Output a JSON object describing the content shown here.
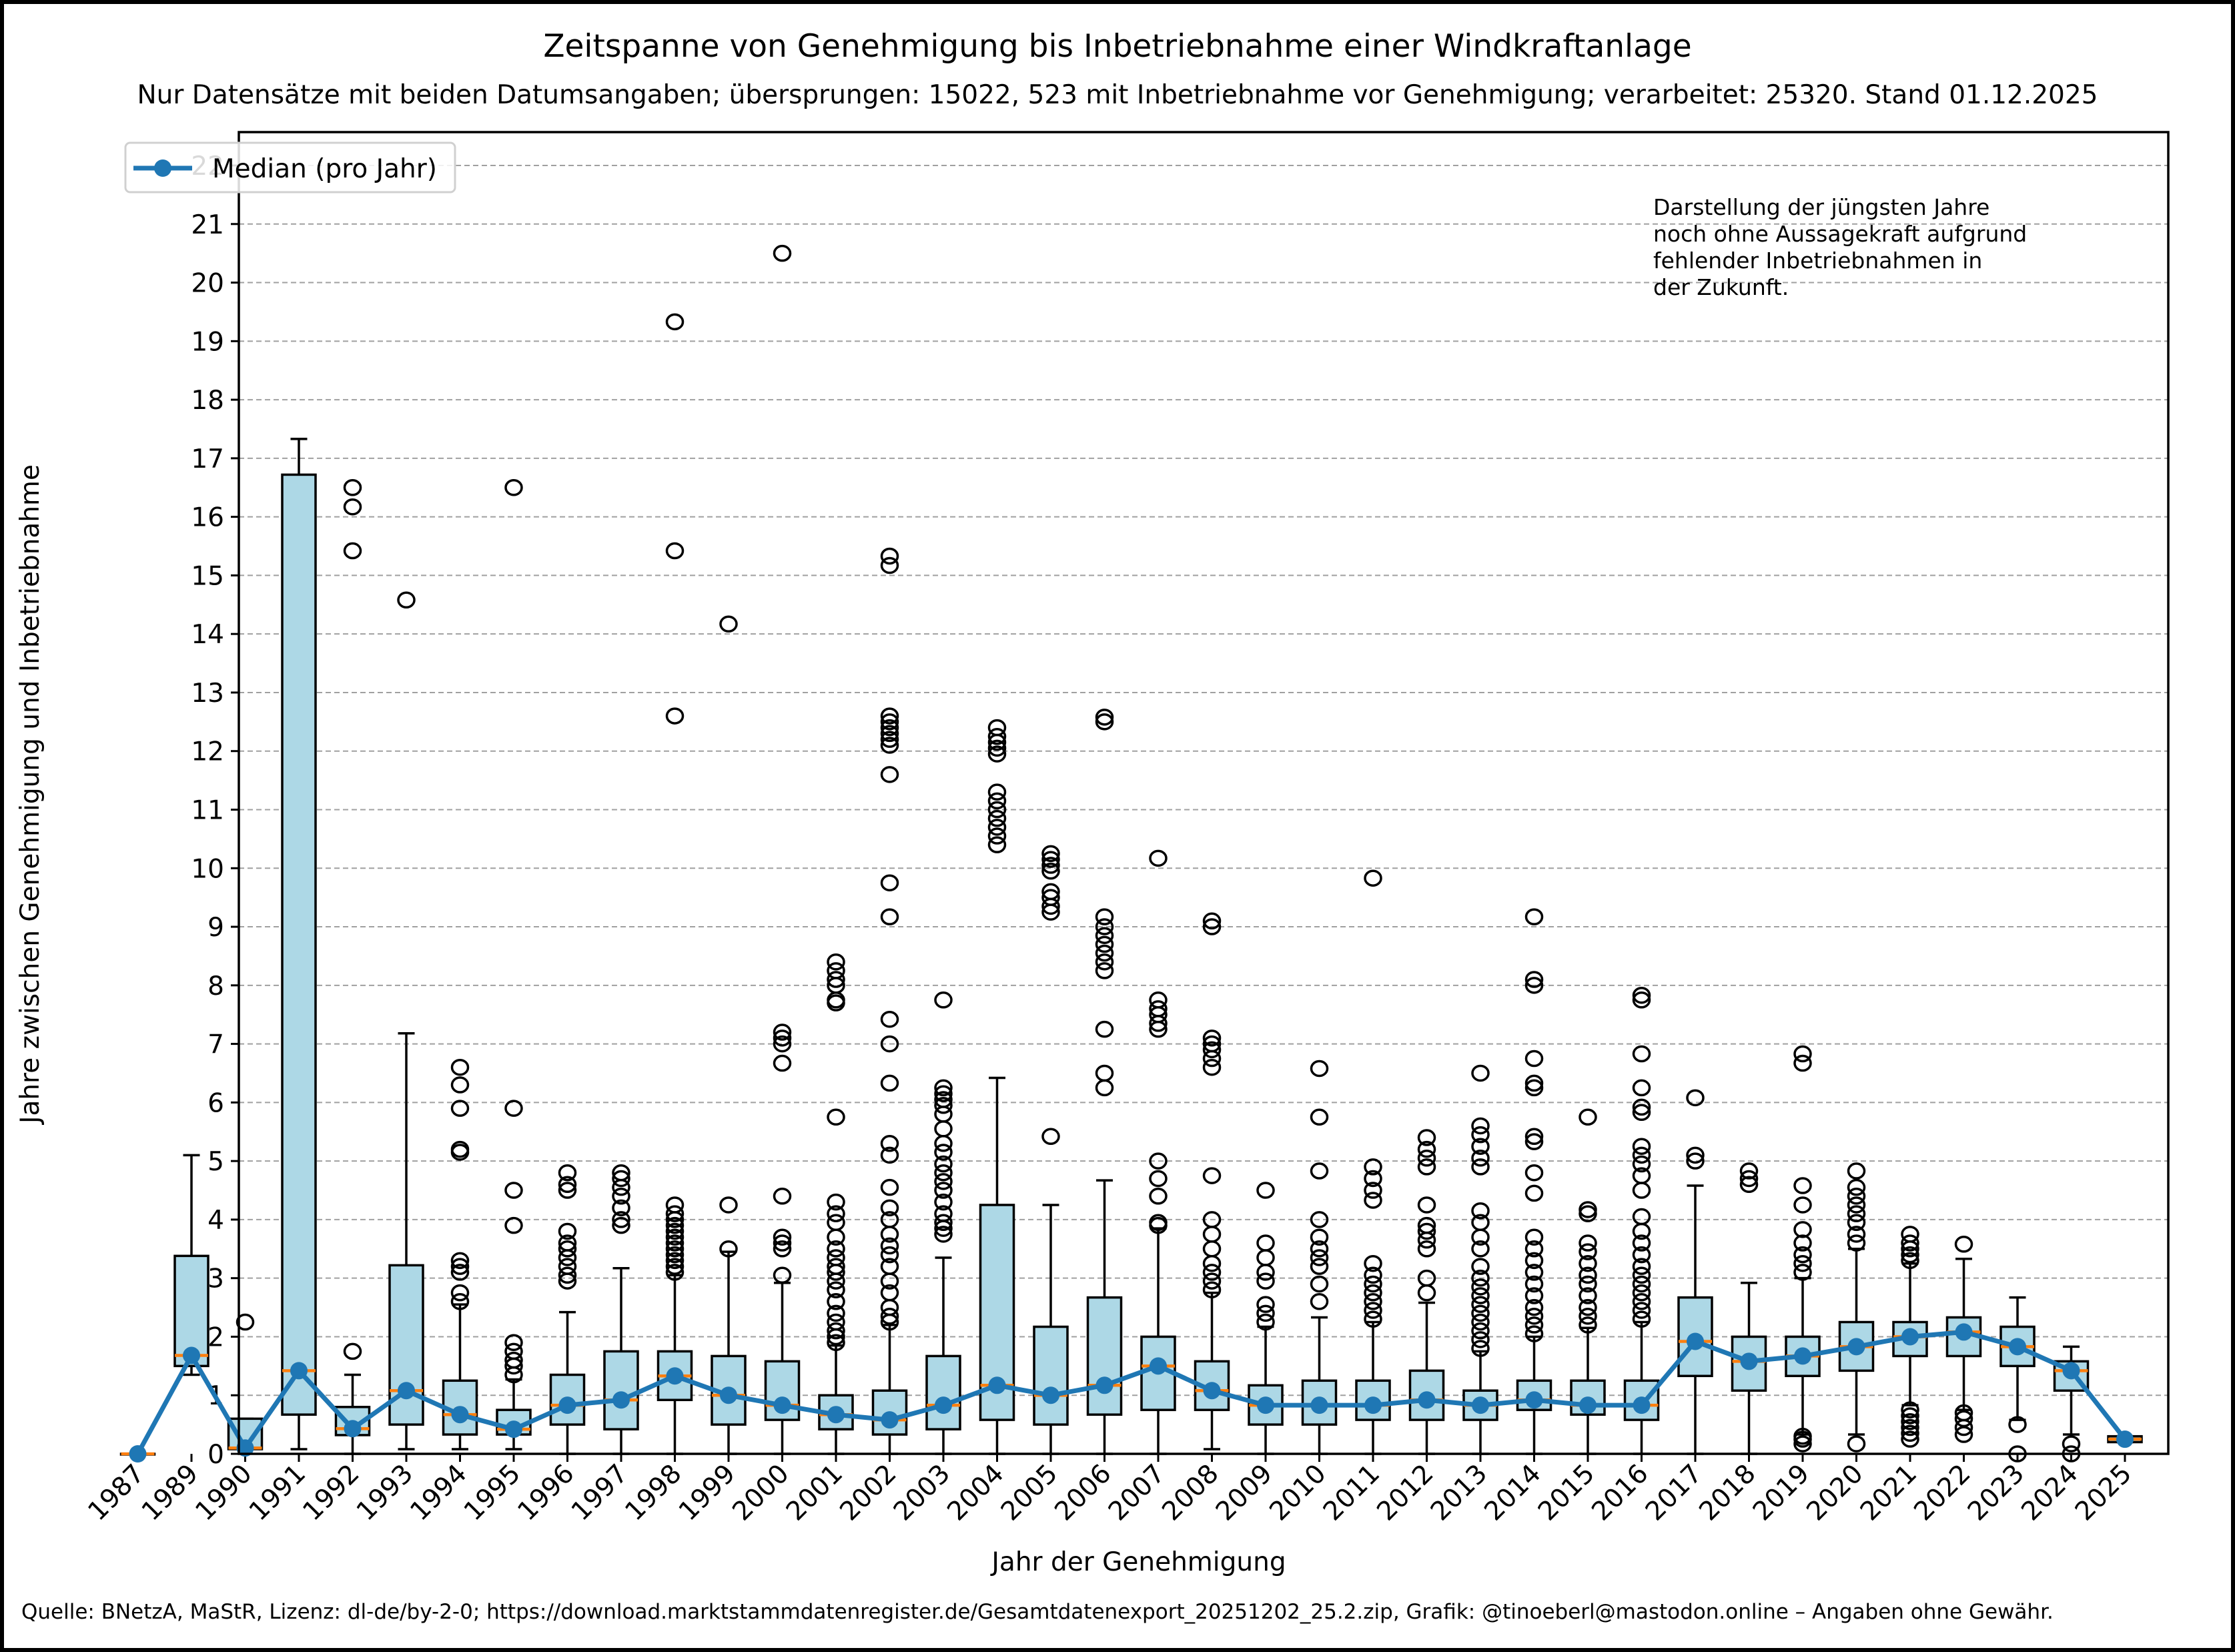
{
  "chart_data": {
    "type": "box",
    "title": "Zeitspanne von Genehmigung bis Inbetriebnahme einer Windkraftanlage",
    "subtitle": "Nur Datensätze mit beiden Datumsangaben; übersprungen: 15022, 523 mit Inbetriebnahme vor Genehmigung; verarbeitet: 25320. Stand 01.12.2025",
    "xlabel": "Jahr der Genehmigung",
    "ylabel": "Jahre zwischen Genehmigung und Inbetriebnahme",
    "ylim": [
      0,
      22.5
    ],
    "yticks": [
      0,
      1,
      2,
      3,
      4,
      5,
      6,
      7,
      8,
      9,
      10,
      11,
      12,
      13,
      14,
      15,
      16,
      17,
      18,
      19,
      20,
      21,
      22
    ],
    "grid": "y-dashed",
    "legend": {
      "position": "top-left",
      "entries": [
        "Median (pro Jahr)"
      ]
    },
    "annotation": [
      "Darstellung der jüngsten Jahre",
      "noch ohne Aussagekraft aufgrund",
      "fehlender Inbetriebnahmen in",
      "der Zukunft."
    ],
    "footer": "Quelle: BNetzA, MaStR, Lizenz: dl-de/by-2-0; https://download.marktstammdatenregister.de/Gesamtdatenexport_20251202_25.2.zip, Grafik: @tinoeberl@mastodon.online – Angaben ohne Gewähr.",
    "categories": [
      "1987",
      "1989",
      "1990",
      "1991",
      "1992",
      "1993",
      "1994",
      "1995",
      "1996",
      "1997",
      "1998",
      "1999",
      "2000",
      "2001",
      "2002",
      "2003",
      "2004",
      "2005",
      "2006",
      "2007",
      "2008",
      "2009",
      "2010",
      "2011",
      "2012",
      "2013",
      "2014",
      "2015",
      "2016",
      "2017",
      "2018",
      "2019",
      "2020",
      "2021",
      "2022",
      "2023",
      "2024",
      "2025"
    ],
    "boxes": [
      {
        "q1": 0,
        "median": 0,
        "q3": 0,
        "whislo": 0,
        "whishi": 0,
        "fliers": []
      },
      {
        "q1": 1.5,
        "median": 1.68,
        "q3": 3.38,
        "whislo": 1.35,
        "whishi": 5.1,
        "fliers": []
      },
      {
        "q1": 0.08,
        "median": 0.1,
        "q3": 0.6,
        "whislo": 0.08,
        "whishi": 0.6,
        "fliers": [
          2.25
        ]
      },
      {
        "q1": 0.67,
        "median": 1.42,
        "q3": 16.72,
        "whislo": 0.08,
        "whishi": 17.33,
        "fliers": []
      },
      {
        "q1": 0.32,
        "median": 0.43,
        "q3": 0.8,
        "whislo": 0,
        "whishi": 1.35,
        "fliers": [
          1.75,
          15.42,
          16.17,
          16.5
        ]
      },
      {
        "q1": 0.5,
        "median": 1.08,
        "q3": 3.22,
        "whislo": 0.08,
        "whishi": 7.18,
        "fliers": [
          14.58
        ]
      },
      {
        "q1": 0.33,
        "median": 0.67,
        "q3": 1.25,
        "whislo": 0.08,
        "whishi": 2.55,
        "fliers": [
          2.6,
          2.75,
          3.1,
          3.2,
          3.3,
          5.15,
          5.2,
          5.9,
          6.3,
          6.6
        ]
      },
      {
        "q1": 0.33,
        "median": 0.42,
        "q3": 0.75,
        "whislo": 0.08,
        "whishi": 1.27,
        "fliers": [
          1.35,
          1.5,
          1.6,
          1.75,
          1.9,
          3.9,
          4.5,
          5.9,
          16.5
        ]
      },
      {
        "q1": 0.5,
        "median": 0.83,
        "q3": 1.35,
        "whislo": 0,
        "whishi": 2.42,
        "fliers": [
          2.95,
          3.05,
          3.2,
          3.35,
          3.5,
          3.6,
          3.8,
          4.5,
          4.6,
          4.8
        ]
      },
      {
        "q1": 0.42,
        "median": 0.92,
        "q3": 1.75,
        "whislo": 0,
        "whishi": 3.17,
        "fliers": [
          3.9,
          4.0,
          4.2,
          4.4,
          4.55,
          4.7,
          4.8
        ]
      },
      {
        "q1": 0.92,
        "median": 1.33,
        "q3": 1.75,
        "whislo": 0,
        "whishi": 3.05,
        "fliers": [
          3.1,
          3.2,
          3.3,
          3.4,
          3.5,
          3.6,
          3.7,
          3.8,
          3.9,
          4.0,
          4.1,
          4.25,
          12.6,
          15.42,
          19.33
        ]
      },
      {
        "q1": 0.5,
        "median": 1.0,
        "q3": 1.67,
        "whislo": 0,
        "whishi": 3.45,
        "fliers": [
          3.5,
          4.25,
          14.17
        ]
      },
      {
        "q1": 0.58,
        "median": 0.83,
        "q3": 1.58,
        "whislo": 0,
        "whishi": 2.92,
        "fliers": [
          3.05,
          3.5,
          3.6,
          3.7,
          4.4,
          6.67,
          7.0,
          7.1,
          7.2,
          20.5
        ]
      },
      {
        "q1": 0.42,
        "median": 0.67,
        "q3": 1.0,
        "whislo": 0,
        "whishi": 1.85,
        "fliers": [
          1.9,
          2.0,
          2.1,
          2.25,
          2.4,
          2.6,
          2.8,
          2.95,
          3.1,
          3.2,
          3.35,
          3.5,
          3.7,
          3.95,
          4.1,
          4.3,
          5.75,
          7.7,
          7.75,
          8.0,
          8.1,
          8.25,
          8.4
        ]
      },
      {
        "q1": 0.33,
        "median": 0.58,
        "q3": 1.08,
        "whislo": 0,
        "whishi": 2.2,
        "fliers": [
          2.25,
          2.35,
          2.5,
          2.75,
          2.95,
          3.2,
          3.4,
          3.55,
          3.75,
          4.0,
          4.2,
          4.55,
          5.1,
          5.3,
          6.33,
          7.0,
          7.42,
          9.17,
          9.75,
          11.6,
          12.1,
          12.2,
          12.3,
          12.4,
          12.5,
          12.6,
          15.17,
          15.33
        ]
      },
      {
        "q1": 0.42,
        "median": 0.83,
        "q3": 1.67,
        "whislo": 0,
        "whishi": 3.35,
        "fliers": [
          3.75,
          3.85,
          3.95,
          4.1,
          4.3,
          4.5,
          4.65,
          4.8,
          4.95,
          5.15,
          5.3,
          5.55,
          5.8,
          5.95,
          6.05,
          6.15,
          6.25,
          7.75
        ]
      },
      {
        "q1": 0.58,
        "median": 1.17,
        "q3": 4.25,
        "whislo": 0,
        "whishi": 6.42,
        "fliers": [
          10.4,
          10.55,
          10.7,
          10.85,
          11.0,
          11.15,
          11.3,
          11.95,
          12.05,
          12.15,
          12.25,
          12.4
        ]
      },
      {
        "q1": 0.5,
        "median": 1.0,
        "q3": 2.17,
        "whislo": 0,
        "whishi": 4.25,
        "fliers": [
          5.42,
          9.25,
          9.35,
          9.5,
          9.6,
          9.95,
          10.05,
          10.15,
          10.25
        ]
      },
      {
        "q1": 0.67,
        "median": 1.17,
        "q3": 2.67,
        "whislo": 0,
        "whishi": 4.67,
        "fliers": [
          6.25,
          6.5,
          7.25,
          8.25,
          8.4,
          8.55,
          8.7,
          8.85,
          9.0,
          9.17,
          12.5,
          12.58
        ]
      },
      {
        "q1": 0.75,
        "median": 1.5,
        "q3": 2.0,
        "whislo": 0,
        "whishi": 3.85,
        "fliers": [
          3.9,
          3.95,
          4.4,
          4.7,
          5.0,
          7.25,
          7.35,
          7.5,
          7.6,
          7.75,
          10.17
        ]
      },
      {
        "q1": 0.75,
        "median": 1.08,
        "q3": 1.58,
        "whislo": 0.08,
        "whishi": 2.75,
        "fliers": [
          2.8,
          2.95,
          3.1,
          3.25,
          3.5,
          3.75,
          4.0,
          4.75,
          6.6,
          6.75,
          6.9,
          7.0,
          7.1,
          9.0,
          9.1
        ]
      },
      {
        "q1": 0.5,
        "median": 0.83,
        "q3": 1.17,
        "whislo": 0,
        "whishi": 2.17,
        "fliers": [
          2.25,
          2.4,
          2.55,
          2.95,
          3.1,
          3.35,
          3.6,
          4.5
        ]
      },
      {
        "q1": 0.5,
        "median": 0.83,
        "q3": 1.25,
        "whislo": 0,
        "whishi": 2.33,
        "fliers": [
          2.6,
          2.9,
          3.2,
          3.35,
          3.5,
          3.7,
          4.0,
          4.83,
          5.75,
          6.58
        ]
      },
      {
        "q1": 0.58,
        "median": 0.83,
        "q3": 1.25,
        "whislo": 0,
        "whishi": 2.25,
        "fliers": [
          2.3,
          2.45,
          2.6,
          2.75,
          2.9,
          3.05,
          3.25,
          4.33,
          4.5,
          4.7,
          4.9,
          9.83
        ]
      },
      {
        "q1": 0.58,
        "median": 0.92,
        "q3": 1.42,
        "whislo": 0,
        "whishi": 2.58,
        "fliers": [
          2.75,
          3.0,
          3.5,
          3.65,
          3.8,
          3.9,
          4.25,
          4.9,
          5.05,
          5.2,
          5.4
        ]
      },
      {
        "q1": 0.58,
        "median": 0.83,
        "q3": 1.08,
        "whislo": 0,
        "whishi": 1.75,
        "fliers": [
          1.8,
          1.95,
          2.1,
          2.25,
          2.4,
          2.55,
          2.7,
          2.85,
          3.0,
          3.2,
          3.5,
          3.7,
          3.95,
          4.15,
          4.9,
          5.05,
          5.25,
          5.45,
          5.6,
          6.5
        ]
      },
      {
        "q1": 0.75,
        "median": 0.92,
        "q3": 1.25,
        "whislo": 0,
        "whishi": 2.0,
        "fliers": [
          2.05,
          2.2,
          2.35,
          2.5,
          2.7,
          2.9,
          3.1,
          3.3,
          3.5,
          3.7,
          4.45,
          4.8,
          5.33,
          5.42,
          6.25,
          6.33,
          6.75,
          8.0,
          8.1,
          9.17
        ]
      },
      {
        "q1": 0.67,
        "median": 0.83,
        "q3": 1.25,
        "whislo": 0,
        "whishi": 2.15,
        "fliers": [
          2.2,
          2.35,
          2.5,
          2.7,
          2.9,
          3.05,
          3.25,
          3.45,
          3.6,
          4.1,
          4.17,
          5.75
        ]
      },
      {
        "q1": 0.58,
        "median": 0.83,
        "q3": 1.25,
        "whislo": 0,
        "whishi": 2.25,
        "fliers": [
          2.3,
          2.45,
          2.6,
          2.75,
          2.9,
          3.05,
          3.2,
          3.4,
          3.6,
          3.8,
          4.05,
          4.5,
          4.75,
          4.95,
          5.1,
          5.25,
          5.83,
          5.92,
          6.25,
          6.83,
          7.75,
          7.83
        ]
      },
      {
        "q1": 1.33,
        "median": 1.92,
        "q3": 2.67,
        "whislo": 0,
        "whishi": 4.58,
        "fliers": [
          5.0,
          5.1,
          6.08
        ]
      },
      {
        "q1": 1.08,
        "median": 1.58,
        "q3": 2.0,
        "whislo": 0,
        "whishi": 2.92,
        "fliers": [
          4.6,
          4.7,
          4.83
        ]
      },
      {
        "q1": 1.33,
        "median": 1.67,
        "q3": 2.0,
        "whislo": 0.33,
        "whishi": 3.0,
        "fliers": [
          0.17,
          0.25,
          0.3,
          3.1,
          3.25,
          3.4,
          3.6,
          3.83,
          4.25,
          4.58,
          6.67,
          6.83
        ]
      },
      {
        "q1": 1.42,
        "median": 1.83,
        "q3": 2.25,
        "whislo": 0.33,
        "whishi": 3.5,
        "fliers": [
          0.17,
          3.6,
          3.75,
          3.95,
          4.1,
          4.25,
          4.4,
          4.55,
          4.83
        ]
      },
      {
        "q1": 1.67,
        "median": 2.0,
        "q3": 2.25,
        "whislo": 0.83,
        "whishi": 3.25,
        "fliers": [
          0.25,
          0.35,
          0.45,
          0.55,
          0.65,
          0.75,
          3.3,
          3.4,
          3.5,
          3.6,
          3.75
        ]
      },
      {
        "q1": 1.67,
        "median": 2.08,
        "q3": 2.33,
        "whislo": 0.75,
        "whishi": 3.33,
        "fliers": [
          0.33,
          0.45,
          0.6,
          0.7,
          3.58
        ]
      },
      {
        "q1": 1.5,
        "median": 1.83,
        "q3": 2.17,
        "whislo": 0.58,
        "whishi": 2.67,
        "fliers": [
          0,
          0.5
        ]
      },
      {
        "q1": 1.08,
        "median": 1.42,
        "q3": 1.58,
        "whislo": 0.33,
        "whishi": 1.83,
        "fliers": [
          0,
          0.17
        ]
      },
      {
        "q1": 0.2,
        "median": 0.25,
        "q3": 0.3,
        "whislo": 0.2,
        "whishi": 0.3,
        "fliers": []
      }
    ],
    "colors": {
      "box_fill": "#add8e6",
      "median_line": "#ff7f0e",
      "median_series": "#1f77b4"
    }
  }
}
